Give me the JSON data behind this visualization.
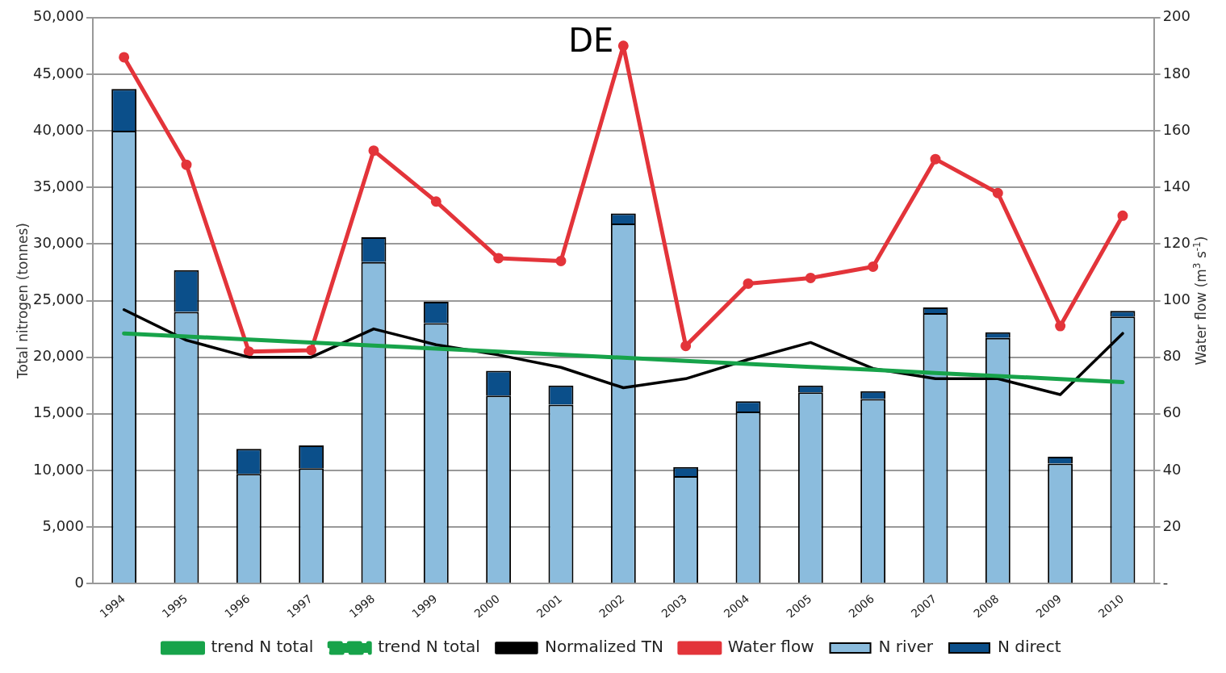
{
  "chart_data": {
    "type": "bar",
    "title": "DE",
    "ylabel": "Total nitrogen (tonnes)",
    "y2label": "Water flow (m$^{3}$ s$^{-1}$)",
    "categories": [
      "1994",
      "1995",
      "1996",
      "1997",
      "1998",
      "1999",
      "2000",
      "2001",
      "2002",
      "2003",
      "2004",
      "2005",
      "2006",
      "2007",
      "2008",
      "2009",
      "2010"
    ],
    "stacked": true,
    "grid": "y",
    "legend": "bottom",
    "ylim": [
      0,
      50000
    ],
    "yticks": [
      0,
      {
        "value": 5000,
        "label": "5,000"
      },
      {
        "value": 10000,
        "label": "10,000"
      },
      {
        "value": 15000,
        "label": "15,000"
      },
      {
        "value": 20000,
        "label": "20,000"
      },
      {
        "value": 25000,
        "label": "25,000"
      },
      {
        "value": 30000,
        "label": "30,000"
      },
      {
        "value": 35000,
        "label": "35,000"
      },
      {
        "value": 40000,
        "label": "40,000"
      },
      {
        "value": 45000,
        "label": "45,000"
      },
      {
        "value": 50000,
        "label": "50,000"
      }
    ],
    "y2lim": [
      0,
      200
    ],
    "y2ticks": [
      {
        "value": 0,
        "label": "-"
      },
      20,
      40,
      60,
      80,
      100,
      120,
      140,
      160,
      180,
      200
    ],
    "series": [
      {
        "name": "N river",
        "color": "#8bbcdd",
        "values": [
          40000,
          24000,
          9700,
          10200,
          28400,
          23000,
          16600,
          15800,
          31800,
          9500,
          15200,
          16900,
          16300,
          23900,
          21700,
          10600,
          23600
        ]
      },
      {
        "name": "N direct",
        "color": "#0b4f8a",
        "values": [
          3700,
          3700,
          2200,
          2000,
          2200,
          1900,
          2200,
          1700,
          900,
          800,
          900,
          600,
          700,
          500,
          500,
          600,
          500
        ]
      },
      {
        "name": "trend N total",
        "type": "line",
        "color": "#17a34a",
        "line_style": "solid",
        "values": [
          22100,
          21830,
          21560,
          21290,
          21030,
          20760,
          20490,
          20220,
          19950,
          19680,
          19410,
          19140,
          18880,
          18610,
          18340,
          18070,
          17800
        ]
      },
      {
        "name": "trend N total",
        "type": "line",
        "color": "#17a34a",
        "line_style": "dashed",
        "values": [
          null,
          null,
          null,
          null,
          null,
          null,
          null,
          null,
          null,
          null,
          null,
          null,
          null,
          null,
          null,
          null,
          null
        ]
      },
      {
        "name": "Normalized TN",
        "type": "line",
        "color": "#000000",
        "line_style": "solid",
        "values": [
          24200,
          21500,
          20000,
          20000,
          22500,
          21100,
          20200,
          19100,
          17300,
          18100,
          19800,
          21300,
          19000,
          18100,
          18100,
          16700,
          22100
        ]
      },
      {
        "name": "Water flow",
        "type": "line",
        "axis": "y2",
        "color": "#e3343a",
        "line_style": "solid",
        "marker": "circle",
        "values": [
          186,
          148,
          82,
          82.5,
          153,
          135,
          115,
          114,
          190,
          84,
          106,
          108,
          112,
          150,
          138,
          91,
          130
        ]
      }
    ]
  }
}
